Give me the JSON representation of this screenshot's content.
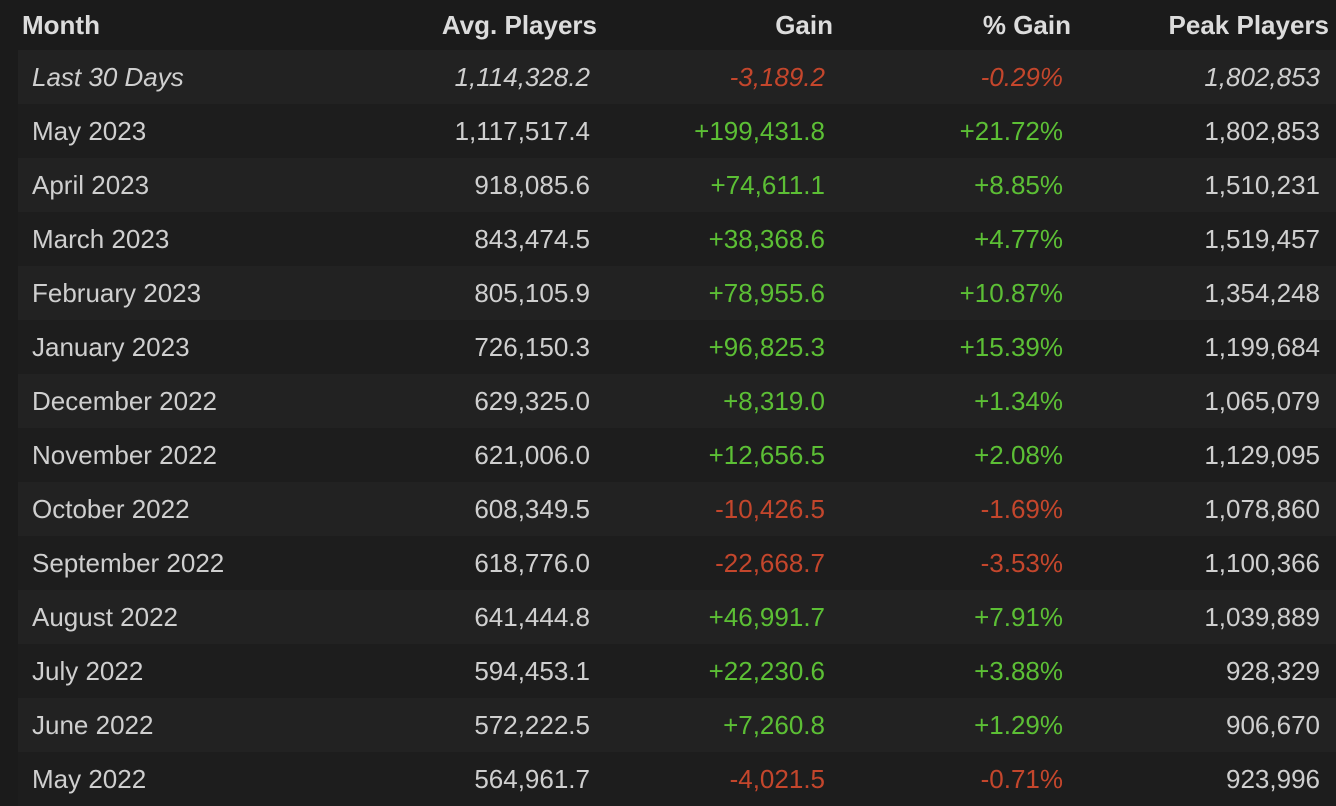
{
  "table": {
    "header": [
      "Month",
      "Avg. Players",
      "Gain",
      "% Gain",
      "Peak Players"
    ],
    "rows": [
      [
        "Last 30 Days",
        "1,114,328.2",
        "-3,189.2",
        "-0.29%",
        "1,802,853"
      ],
      [
        "May 2023",
        "1,117,517.4",
        "+199,431.8",
        "+21.72%",
        "1,802,853"
      ],
      [
        "April 2023",
        "918,085.6",
        "+74,611.1",
        "+8.85%",
        "1,510,231"
      ],
      [
        "March 2023",
        "843,474.5",
        "+38,368.6",
        "+4.77%",
        "1,519,457"
      ],
      [
        "February 2023",
        "805,105.9",
        "+78,955.6",
        "+10.87%",
        "1,354,248"
      ],
      [
        "January 2023",
        "726,150.3",
        "+96,825.3",
        "+15.39%",
        "1,199,684"
      ],
      [
        "December 2022",
        "629,325.0",
        "+8,319.0",
        "+1.34%",
        "1,065,079"
      ],
      [
        "November 2022",
        "621,006.0",
        "+12,656.5",
        "+2.08%",
        "1,129,095"
      ],
      [
        "October 2022",
        "608,349.5",
        "-10,426.5",
        "-1.69%",
        "1,078,860"
      ],
      [
        "September 2022",
        "618,776.0",
        "-22,668.7",
        "-3.53%",
        "1,100,366"
      ],
      [
        "August 2022",
        "641,444.8",
        "+46,991.7",
        "+7.91%",
        "1,039,889"
      ],
      [
        "July 2022",
        "594,453.1",
        "+22,230.6",
        "+3.88%",
        "928,329"
      ],
      [
        "June 2022",
        "572,222.5",
        "+7,260.8",
        "+1.29%",
        "906,670"
      ],
      [
        "May 2022",
        "564,961.7",
        "-4,021.5",
        "-0.71%",
        "923,996"
      ]
    ]
  }
}
